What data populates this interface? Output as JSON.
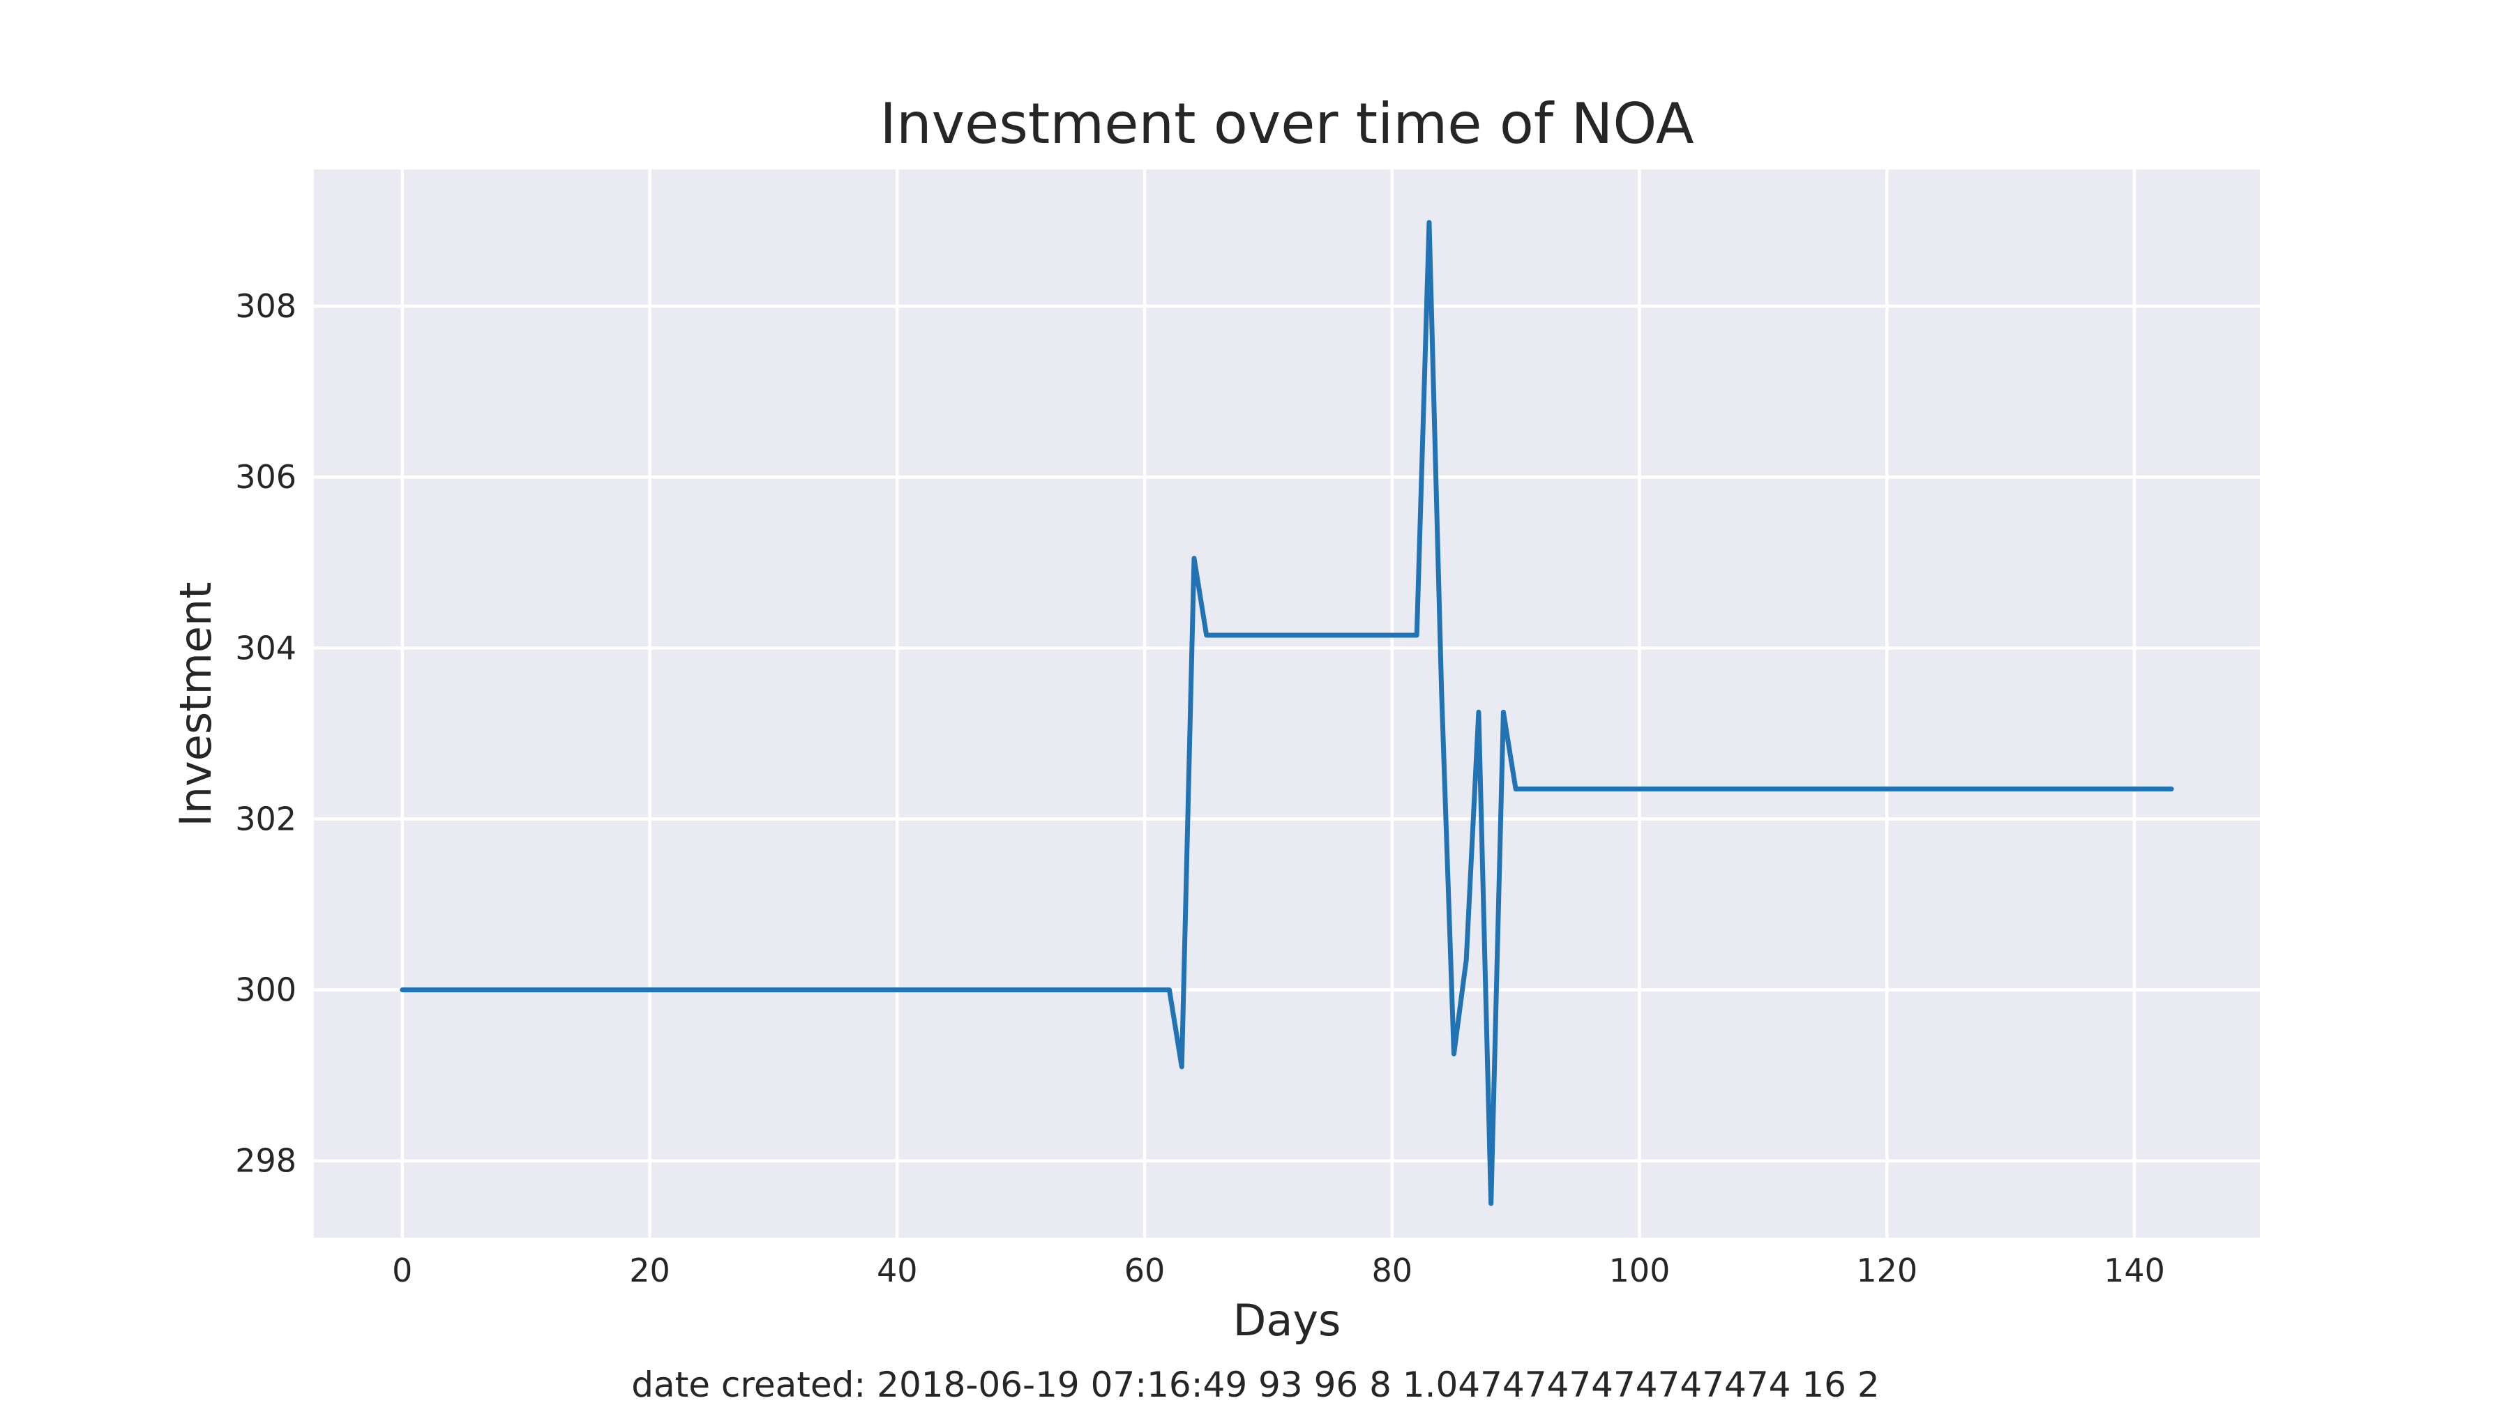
{
  "chart_data": {
    "type": "line",
    "title": "Investment over time of NOA",
    "xlabel": "Days",
    "ylabel": "Investment",
    "footer": "date created: 2018-06-19 07:16:49 93 96 8 1.0474747474747474 16 2",
    "xlim": [
      -7.15,
      150.15
    ],
    "ylim": [
      297.1,
      309.6
    ],
    "xticks": [
      0,
      20,
      40,
      60,
      80,
      100,
      120,
      140
    ],
    "yticks": [
      298,
      300,
      302,
      304,
      306,
      308
    ],
    "grid": true,
    "line_color": "#2273b4",
    "background_color": "#eaeaf2",
    "series": [
      {
        "x": [
          0,
          62,
          63,
          64,
          65,
          82,
          83,
          84,
          85,
          86,
          87,
          88,
          89,
          90,
          143
        ],
        "y": [
          300.0,
          300.0,
          299.1,
          305.05,
          304.15,
          304.15,
          308.98,
          303.5,
          299.25,
          300.35,
          303.25,
          297.5,
          303.25,
          302.35,
          302.35
        ]
      }
    ]
  }
}
